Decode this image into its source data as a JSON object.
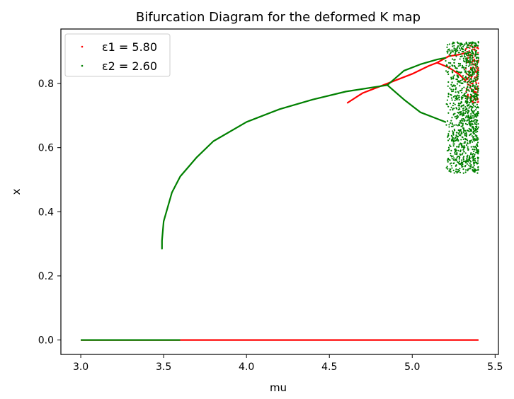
{
  "chart_data": {
    "type": "scatter",
    "title": "Bifurcation Diagram for the deformed K map",
    "xlabel": "mu",
    "ylabel": "x",
    "xlim": [
      2.88,
      5.52
    ],
    "ylim": [
      -0.045,
      0.97
    ],
    "x_ticks": [
      3.0,
      3.5,
      4.0,
      4.5,
      5.0,
      5.5
    ],
    "y_ticks": [
      0.0,
      0.2,
      0.4,
      0.6,
      0.8
    ],
    "x_tick_labels": [
      "3.0",
      "3.5",
      "4.0",
      "4.5",
      "5.0",
      "5.5"
    ],
    "y_tick_labels": [
      "0.0",
      "0.2",
      "0.4",
      "0.6",
      "0.8"
    ],
    "grid": false,
    "legend_position": "top-left",
    "series": [
      {
        "name": "ε1 = 5.80",
        "color": "#ff0000",
        "marker": "dot",
        "segments": [
          {
            "kind": "fixed",
            "mu_range": [
              3.0,
              3.6
            ],
            "x": 0.0
          },
          {
            "kind": "fixed",
            "mu_range": [
              3.6,
              5.4
            ],
            "x": 0.0
          },
          {
            "kind": "branch",
            "points": [
              [
                4.61,
                0.74
              ],
              [
                4.7,
                0.77
              ],
              [
                4.85,
                0.8
              ],
              [
                5.0,
                0.83
              ],
              [
                5.1,
                0.855
              ],
              [
                5.15,
                0.865
              ]
            ]
          },
          {
            "kind": "branch",
            "points": [
              [
                5.15,
                0.865
              ],
              [
                5.22,
                0.85
              ],
              [
                5.28,
                0.83
              ],
              [
                5.32,
                0.81
              ]
            ]
          },
          {
            "kind": "branch",
            "points": [
              [
                5.15,
                0.865
              ],
              [
                5.22,
                0.885
              ],
              [
                5.28,
                0.89
              ],
              [
                5.32,
                0.895
              ]
            ]
          },
          {
            "kind": "chaos",
            "mu_range": [
              5.32,
              5.4
            ],
            "x_range": [
              0.74,
              0.92
            ]
          }
        ]
      },
      {
        "name": "ε2 = 2.60",
        "color": "#008000",
        "marker": "dot",
        "segments": [
          {
            "kind": "fixed",
            "mu_range": [
              3.0,
              3.6
            ],
            "x": 0.0
          },
          {
            "kind": "branch",
            "points": [
              [
                3.49,
                0.285
              ],
              [
                3.49,
                0.31
              ],
              [
                3.5,
                0.37
              ],
              [
                3.55,
                0.46
              ],
              [
                3.6,
                0.51
              ],
              [
                3.7,
                0.57
              ],
              [
                3.8,
                0.62
              ],
              [
                4.0,
                0.68
              ],
              [
                4.2,
                0.72
              ],
              [
                4.4,
                0.75
              ],
              [
                4.6,
                0.775
              ],
              [
                4.85,
                0.795
              ]
            ]
          },
          {
            "kind": "branch",
            "points": [
              [
                4.85,
                0.795
              ],
              [
                4.95,
                0.84
              ],
              [
                5.05,
                0.86
              ],
              [
                5.15,
                0.875
              ],
              [
                5.2,
                0.88
              ]
            ]
          },
          {
            "kind": "branch",
            "points": [
              [
                4.85,
                0.795
              ],
              [
                4.95,
                0.75
              ],
              [
                5.05,
                0.71
              ],
              [
                5.15,
                0.69
              ],
              [
                5.2,
                0.68
              ]
            ]
          },
          {
            "kind": "chaos",
            "mu_range": [
              5.2,
              5.4
            ],
            "x_range": [
              0.52,
              0.93
            ]
          }
        ]
      }
    ]
  }
}
